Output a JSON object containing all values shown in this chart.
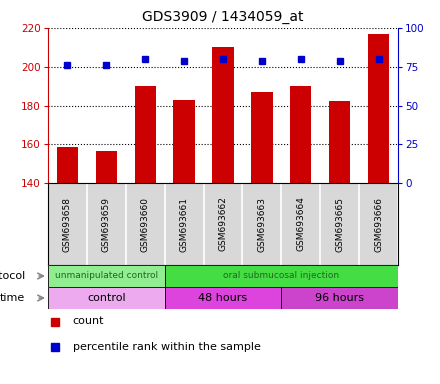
{
  "title": "GDS3909 / 1434059_at",
  "samples": [
    "GSM693658",
    "GSM693659",
    "GSM693660",
    "GSM693661",
    "GSM693662",
    "GSM693663",
    "GSM693664",
    "GSM693665",
    "GSM693666"
  ],
  "count_values": [
    158.5,
    156.5,
    190.0,
    183.0,
    210.0,
    187.0,
    190.0,
    182.5,
    217.0
  ],
  "percentile_values": [
    76,
    76,
    80,
    79,
    80,
    79,
    80,
    79,
    80
  ],
  "ylim_left": [
    140,
    220
  ],
  "ylim_right": [
    0,
    100
  ],
  "yticks_left": [
    140,
    160,
    180,
    200,
    220
  ],
  "yticks_right": [
    0,
    25,
    50,
    75,
    100
  ],
  "bar_color": "#cc0000",
  "dot_color": "#0000cc",
  "bar_width": 0.55,
  "protocol_groups": [
    {
      "label": "unmanipulated control",
      "start": 0,
      "end": 3,
      "color": "#90ee90"
    },
    {
      "label": "oral submucosal injection",
      "start": 3,
      "end": 9,
      "color": "#44dd44"
    }
  ],
  "time_groups": [
    {
      "label": "control",
      "start": 0,
      "end": 3,
      "color": "#eeaaee"
    },
    {
      "label": "48 hours",
      "start": 3,
      "end": 6,
      "color": "#dd44dd"
    },
    {
      "label": "96 hours",
      "start": 6,
      "end": 9,
      "color": "#cc44cc"
    }
  ],
  "protocol_label": "protocol",
  "time_label": "time",
  "legend_count": "count",
  "legend_percentile": "percentile rank within the sample",
  "grid_color": "#000000",
  "background_color": "#ffffff",
  "plot_bg_color": "#ffffff",
  "sample_box_color": "#d8d8d8",
  "label_color_left": "#cc0000",
  "label_color_right": "#0000cc"
}
